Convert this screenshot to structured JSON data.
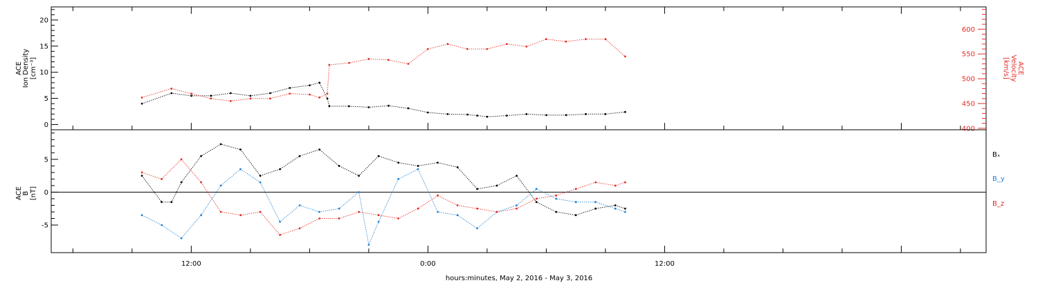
{
  "chart_data": [
    {
      "type": "scatter",
      "title": "",
      "ylabel_lines": [
        "ACE",
        "Ion Density",
        "[cm⁻³]"
      ],
      "ylabel_right_lines": [
        "ACE",
        "Velocity",
        "[km/s]"
      ],
      "ylim": [
        -1,
        22.5
      ],
      "ylim_right": [
        397,
        645
      ],
      "yticks": [
        0,
        5,
        10,
        15,
        20
      ],
      "yticks_right": [
        400,
        450,
        500,
        550,
        600
      ],
      "series": [
        {
          "name": "",
          "axis": "left",
          "color": "#000000",
          "x": [
            -14.5,
            -13,
            -12,
            -11,
            -10,
            -9,
            -8,
            -7,
            -6,
            -5.5,
            -5.1,
            -5,
            -4,
            -3,
            -2,
            -1,
            0,
            1,
            2,
            2.5,
            3,
            4,
            5,
            6,
            7,
            8,
            9,
            10
          ],
          "y": [
            4,
            6,
            5.5,
            5.5,
            6,
            5.5,
            6,
            7,
            7.5,
            8,
            5,
            3.5,
            3.5,
            3.3,
            3.6,
            3.1,
            2.3,
            2,
            1.9,
            1.7,
            1.5,
            1.7,
            2,
            1.8,
            1.8,
            2,
            2,
            2.4
          ]
        },
        {
          "name": "",
          "axis": "right",
          "color": "#e32a22",
          "x": [
            -14.5,
            -13,
            -12,
            -11,
            -10,
            -9,
            -8,
            -7,
            -6,
            -5.5,
            -5.1,
            -5,
            -4,
            -3,
            -2,
            -1,
            0,
            1,
            2,
            3,
            4,
            5,
            6,
            7,
            8,
            9,
            10
          ],
          "y": [
            462,
            480,
            470,
            460,
            455,
            460,
            460,
            470,
            468,
            462,
            470,
            528,
            532,
            540,
            538,
            530,
            560,
            570,
            560,
            560,
            570,
            565,
            580,
            575,
            580,
            580,
            545
          ]
        }
      ]
    },
    {
      "type": "scatter",
      "title": "",
      "ylabel_lines": [
        "ACE",
        "B",
        "[nT]"
      ],
      "ylim": [
        -9.2,
        9.5
      ],
      "yticks": [
        -5,
        0,
        5
      ],
      "zero_line": true,
      "series": [
        {
          "name": "Bₓ",
          "color": "#000000",
          "x": [
            -14.5,
            -13.5,
            -13,
            -12.5,
            -11.5,
            -10.5,
            -9.5,
            -8.5,
            -7.5,
            -6.5,
            -5.5,
            -4.5,
            -3.5,
            -2.5,
            -1.5,
            -0.5,
            0.5,
            1.5,
            2.5,
            3.5,
            4.5,
            5.5,
            6.5,
            7.5,
            8.5,
            9.5,
            10
          ],
          "y": [
            2.5,
            -1.5,
            -1.5,
            1.5,
            5.5,
            7.3,
            6.5,
            2.5,
            3.5,
            5.5,
            6.5,
            4,
            2.5,
            5.5,
            4.5,
            4,
            4.5,
            3.8,
            0.5,
            1,
            2.5,
            -1.5,
            -3,
            -3.5,
            -2.5,
            -2,
            -2.5
          ]
        },
        {
          "name": "B_y",
          "color": "#1e7fd0",
          "x": [
            -14.5,
            -13.5,
            -12.5,
            -11.5,
            -10.5,
            -9.5,
            -8.5,
            -7.5,
            -6.5,
            -5.5,
            -4.5,
            -3.5,
            -3,
            -2.5,
            -1.5,
            -0.5,
            0.5,
            1.5,
            2.5,
            3.5,
            4.5,
            5.5,
            6.5,
            7.5,
            8.5,
            9.5,
            10
          ],
          "y": [
            -3.5,
            -5,
            -7,
            -3.5,
            1,
            3.5,
            1.5,
            -4.5,
            -2,
            -3,
            -2.5,
            0,
            -8,
            -4.5,
            2,
            3.5,
            -3,
            -3.5,
            -5.5,
            -3,
            -2,
            0.5,
            -1,
            -1.5,
            -1.5,
            -2.5,
            -3
          ]
        },
        {
          "name": "B_z",
          "color": "#e32a22",
          "x": [
            -14.5,
            -13.5,
            -12.5,
            -11.5,
            -10.5,
            -9.5,
            -8.5,
            -7.5,
            -6.5,
            -5.5,
            -4.5,
            -3.5,
            -2.5,
            -1.5,
            -0.5,
            0.5,
            1.5,
            2.5,
            3.5,
            4.5,
            5.5,
            6.5,
            7.5,
            8.5,
            9.5,
            10
          ],
          "y": [
            3,
            2,
            5,
            1.5,
            -3,
            -3.5,
            -3,
            -6.5,
            -5.5,
            -4,
            -4,
            -3,
            -3.5,
            -4,
            -2.5,
            -0.5,
            -2,
            -2.5,
            -3,
            -2.5,
            -1,
            -0.5,
            0.5,
            1.5,
            1,
            1.5
          ]
        }
      ]
    }
  ],
  "x_axis": {
    "units": "hours relative to 0:00 May 3, 2016",
    "range": [
      -19.1,
      28.3
    ],
    "tick_labels": [
      {
        "x": -12,
        "label": "12:00"
      },
      {
        "x": 0,
        "label": "0:00"
      },
      {
        "x": 12,
        "label": "12:00"
      }
    ],
    "caption": "hours:minutes, May  2, 2016 - May  3, 2016"
  },
  "colors": {
    "black": "#000000",
    "red": "#e32a22",
    "blue": "#1e7fd0",
    "frame": "#000000"
  }
}
